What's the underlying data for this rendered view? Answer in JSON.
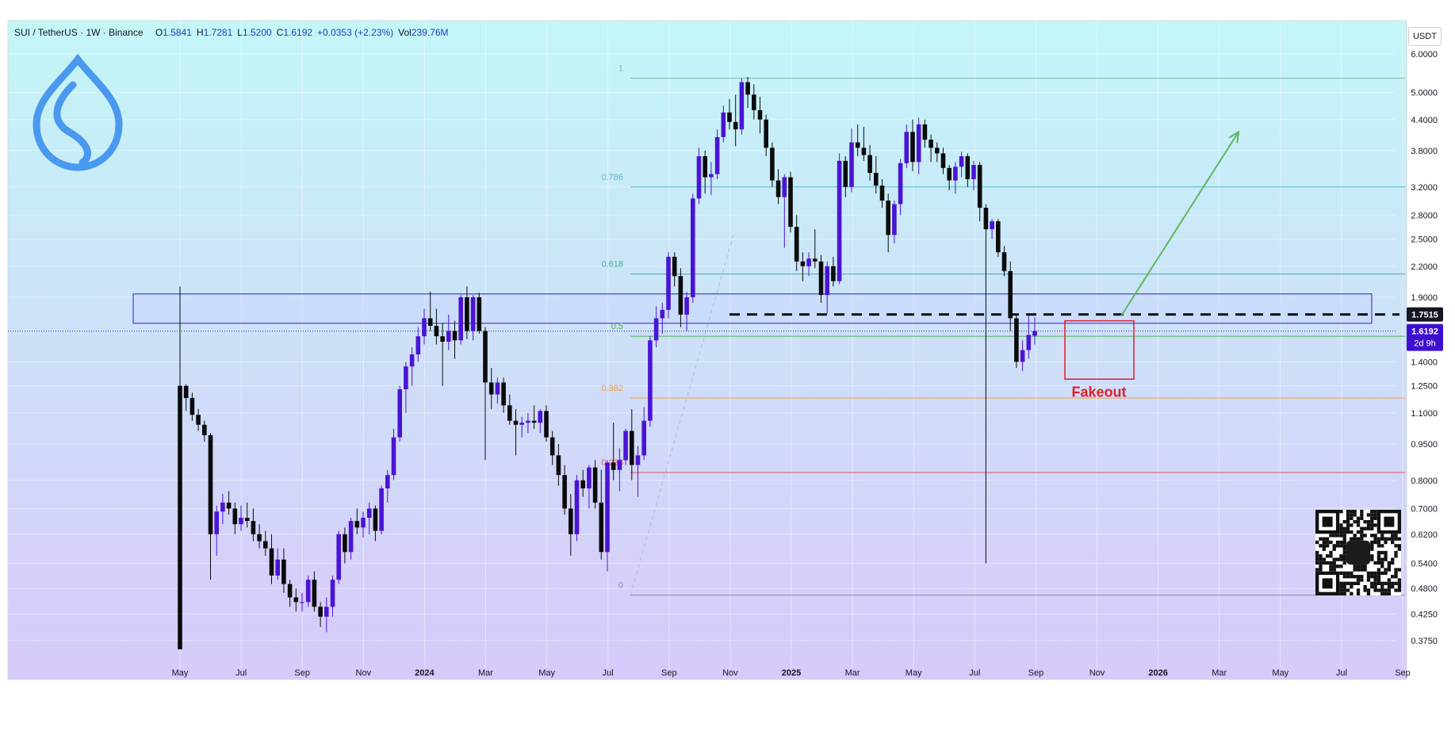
{
  "header": {
    "symbol": "SUI / TetherUS · 1W · Binance",
    "open_label": "O",
    "open": "1.5841",
    "high_label": "H",
    "high": "1.7281",
    "low_label": "L",
    "low": "1.5200",
    "close_label": "C",
    "close": "1.6192",
    "change": "+0.0353 (+2.23%)",
    "volume_label": "Vol",
    "volume": "239.76M"
  },
  "currency": "USDT",
  "colors": {
    "bg_top": "#c3f6f7",
    "bg_bottom": "#d8c9fa",
    "bull_body": "#4a14d4",
    "bear_body": "#0b0b0b",
    "accent": "#2f1fd0",
    "fakeout": "#e01e2a",
    "arrow": "#5cb85c"
  },
  "chart_data": {
    "type": "candlestick",
    "scale": "log",
    "ylim": [
      0.34,
      6.3
    ],
    "x_tick_labels": [
      "May",
      "Jul",
      "Sep",
      "Nov",
      "2024",
      "Mar",
      "May",
      "Jul",
      "Sep",
      "Nov",
      "2025",
      "Mar",
      "May",
      "Jul",
      "Sep",
      "Nov",
      "2026",
      "Mar",
      "May",
      "Jul",
      "Sep"
    ],
    "bold_x_ticks": [
      "2024",
      "2025",
      "2026"
    ],
    "y_tick_labels": [
      "6.0000",
      "5.0000",
      "4.4000",
      "3.8000",
      "3.2000",
      "2.8000",
      "2.5000",
      "2.2000",
      "1.9000",
      "1.4000",
      "1.2500",
      "1.1000",
      "0.9500",
      "0.8000",
      "0.7000",
      "0.6200",
      "0.5400",
      "0.4800",
      "0.4250",
      "0.3750"
    ],
    "y_tick_values": [
      6.0,
      5.0,
      4.4,
      3.8,
      3.2,
      2.8,
      2.5,
      2.2,
      1.9,
      1.4,
      1.25,
      1.1,
      0.95,
      0.8,
      0.7,
      0.62,
      0.54,
      0.48,
      0.425,
      0.375
    ],
    "current_price": {
      "label": "1.6192",
      "countdown": "2d 9h",
      "value": 1.6192
    },
    "level_marker": {
      "label": "1.7515",
      "value": 1.7515
    },
    "fib_levels": [
      {
        "label": "1",
        "value": 5.35,
        "color": "#7fb8a4"
      },
      {
        "label": "0.786",
        "value": 3.2,
        "color": "#58b8c4"
      },
      {
        "label": "0.618",
        "value": 2.12,
        "color": "#3fb0a0"
      },
      {
        "label": "0.5",
        "value": 1.58,
        "color": "#4caf50"
      },
      {
        "label": "0.382",
        "value": 1.18,
        "color": "#f2a13a"
      },
      {
        "label": "0.236",
        "value": 0.83,
        "color": "#e05660"
      },
      {
        "label": "0",
        "value": 0.465,
        "color": "#8a8aa0"
      }
    ],
    "zone": {
      "top": 1.93,
      "bottom": 1.68
    },
    "annotation": "Fakeout",
    "candles": [
      {
        "o": 1.25,
        "h": 1.25,
        "l": 0.36,
        "c": 0.36,
        "wick_top": 2.0
      },
      {
        "o": 1.25,
        "h": 1.26,
        "l": 1.11,
        "c": 1.18
      },
      {
        "o": 1.18,
        "h": 1.21,
        "l": 1.06,
        "c": 1.09
      },
      {
        "o": 1.09,
        "h": 1.12,
        "l": 1.01,
        "c": 1.04
      },
      {
        "o": 1.04,
        "h": 1.06,
        "l": 0.96,
        "c": 0.99
      },
      {
        "o": 0.99,
        "h": 1.0,
        "l": 0.5,
        "c": 0.62
      },
      {
        "o": 0.62,
        "h": 0.71,
        "l": 0.56,
        "c": 0.69
      },
      {
        "o": 0.69,
        "h": 0.75,
        "l": 0.65,
        "c": 0.72
      },
      {
        "o": 0.72,
        "h": 0.76,
        "l": 0.68,
        "c": 0.7
      },
      {
        "o": 0.7,
        "h": 0.72,
        "l": 0.62,
        "c": 0.65
      },
      {
        "o": 0.65,
        "h": 0.71,
        "l": 0.63,
        "c": 0.67
      },
      {
        "o": 0.67,
        "h": 0.72,
        "l": 0.64,
        "c": 0.66
      },
      {
        "o": 0.66,
        "h": 0.7,
        "l": 0.6,
        "c": 0.62
      },
      {
        "o": 0.62,
        "h": 0.65,
        "l": 0.58,
        "c": 0.6
      },
      {
        "o": 0.6,
        "h": 0.63,
        "l": 0.56,
        "c": 0.58
      },
      {
        "o": 0.58,
        "h": 0.62,
        "l": 0.49,
        "c": 0.51
      },
      {
        "o": 0.51,
        "h": 0.58,
        "l": 0.5,
        "c": 0.55
      },
      {
        "o": 0.55,
        "h": 0.58,
        "l": 0.47,
        "c": 0.49
      },
      {
        "o": 0.49,
        "h": 0.5,
        "l": 0.44,
        "c": 0.46
      },
      {
        "o": 0.46,
        "h": 0.48,
        "l": 0.43,
        "c": 0.45
      },
      {
        "o": 0.45,
        "h": 0.47,
        "l": 0.43,
        "c": 0.45
      },
      {
        "o": 0.45,
        "h": 0.51,
        "l": 0.44,
        "c": 0.5
      },
      {
        "o": 0.5,
        "h": 0.52,
        "l": 0.43,
        "c": 0.44
      },
      {
        "o": 0.44,
        "h": 0.45,
        "l": 0.4,
        "c": 0.42
      },
      {
        "o": 0.42,
        "h": 0.46,
        "l": 0.39,
        "c": 0.44
      },
      {
        "o": 0.44,
        "h": 0.51,
        "l": 0.42,
        "c": 0.5
      },
      {
        "o": 0.5,
        "h": 0.63,
        "l": 0.49,
        "c": 0.62
      },
      {
        "o": 0.62,
        "h": 0.64,
        "l": 0.54,
        "c": 0.57
      },
      {
        "o": 0.57,
        "h": 0.67,
        "l": 0.55,
        "c": 0.66
      },
      {
        "o": 0.66,
        "h": 0.7,
        "l": 0.62,
        "c": 0.64
      },
      {
        "o": 0.64,
        "h": 0.69,
        "l": 0.61,
        "c": 0.67
      },
      {
        "o": 0.67,
        "h": 0.72,
        "l": 0.62,
        "c": 0.7
      },
      {
        "o": 0.7,
        "h": 0.71,
        "l": 0.6,
        "c": 0.63
      },
      {
        "o": 0.63,
        "h": 0.78,
        "l": 0.62,
        "c": 0.77
      },
      {
        "o": 0.77,
        "h": 0.84,
        "l": 0.72,
        "c": 0.82
      },
      {
        "o": 0.82,
        "h": 1.02,
        "l": 0.8,
        "c": 0.98
      },
      {
        "o": 0.98,
        "h": 1.25,
        "l": 0.96,
        "c": 1.23
      },
      {
        "o": 1.23,
        "h": 1.4,
        "l": 1.1,
        "c": 1.37
      },
      {
        "o": 1.37,
        "h": 1.5,
        "l": 1.25,
        "c": 1.45
      },
      {
        "o": 1.45,
        "h": 1.65,
        "l": 1.4,
        "c": 1.58
      },
      {
        "o": 1.58,
        "h": 1.8,
        "l": 1.52,
        "c": 1.72
      },
      {
        "o": 1.72,
        "h": 1.95,
        "l": 1.62,
        "c": 1.66
      },
      {
        "o": 1.66,
        "h": 1.8,
        "l": 1.52,
        "c": 1.58
      },
      {
        "o": 1.58,
        "h": 1.68,
        "l": 1.25,
        "c": 1.54
      },
      {
        "o": 1.54,
        "h": 1.75,
        "l": 1.48,
        "c": 1.62
      },
      {
        "o": 1.62,
        "h": 1.7,
        "l": 1.42,
        "c": 1.55
      },
      {
        "o": 1.55,
        "h": 1.92,
        "l": 1.52,
        "c": 1.9
      },
      {
        "o": 1.9,
        "h": 2.0,
        "l": 1.56,
        "c": 1.62
      },
      {
        "o": 1.62,
        "h": 1.92,
        "l": 1.55,
        "c": 1.9
      },
      {
        "o": 1.9,
        "h": 1.94,
        "l": 1.6,
        "c": 1.62
      },
      {
        "o": 1.62,
        "h": 1.65,
        "l": 0.88,
        "c": 1.27
      },
      {
        "o": 1.27,
        "h": 1.36,
        "l": 1.12,
        "c": 1.2
      },
      {
        "o": 1.2,
        "h": 1.3,
        "l": 1.15,
        "c": 1.27
      },
      {
        "o": 1.27,
        "h": 1.3,
        "l": 1.1,
        "c": 1.14
      },
      {
        "o": 1.14,
        "h": 1.2,
        "l": 1.04,
        "c": 1.06
      },
      {
        "o": 1.06,
        "h": 1.12,
        "l": 0.9,
        "c": 1.04
      },
      {
        "o": 1.04,
        "h": 1.08,
        "l": 0.98,
        "c": 1.05
      },
      {
        "o": 1.05,
        "h": 1.1,
        "l": 1.0,
        "c": 1.06
      },
      {
        "o": 1.06,
        "h": 1.14,
        "l": 1.02,
        "c": 1.05
      },
      {
        "o": 1.05,
        "h": 1.12,
        "l": 1.0,
        "c": 1.11
      },
      {
        "o": 1.11,
        "h": 1.14,
        "l": 0.96,
        "c": 0.98
      },
      {
        "o": 0.98,
        "h": 1.01,
        "l": 0.86,
        "c": 0.9
      },
      {
        "o": 0.9,
        "h": 0.95,
        "l": 0.78,
        "c": 0.82
      },
      {
        "o": 0.82,
        "h": 0.86,
        "l": 0.68,
        "c": 0.7
      },
      {
        "o": 0.7,
        "h": 0.75,
        "l": 0.56,
        "c": 0.62
      },
      {
        "o": 0.62,
        "h": 0.82,
        "l": 0.6,
        "c": 0.8
      },
      {
        "o": 0.8,
        "h": 0.84,
        "l": 0.74,
        "c": 0.77
      },
      {
        "o": 0.77,
        "h": 0.86,
        "l": 0.7,
        "c": 0.85
      },
      {
        "o": 0.85,
        "h": 0.88,
        "l": 0.7,
        "c": 0.72
      },
      {
        "o": 0.72,
        "h": 0.84,
        "l": 0.55,
        "c": 0.57
      },
      {
        "o": 0.57,
        "h": 0.88,
        "l": 0.52,
        "c": 0.87
      },
      {
        "o": 0.87,
        "h": 1.05,
        "l": 0.8,
        "c": 0.84
      },
      {
        "o": 0.84,
        "h": 0.93,
        "l": 0.76,
        "c": 0.88
      },
      {
        "o": 0.88,
        "h": 1.02,
        "l": 0.86,
        "c": 1.01
      },
      {
        "o": 1.01,
        "h": 1.12,
        "l": 0.8,
        "c": 0.86
      },
      {
        "o": 0.86,
        "h": 0.94,
        "l": 0.74,
        "c": 0.9
      },
      {
        "o": 0.9,
        "h": 1.13,
        "l": 0.88,
        "c": 1.06
      },
      {
        "o": 1.06,
        "h": 1.58,
        "l": 1.03,
        "c": 1.55
      },
      {
        "o": 1.55,
        "h": 1.82,
        "l": 1.5,
        "c": 1.72
      },
      {
        "o": 1.72,
        "h": 1.85,
        "l": 1.6,
        "c": 1.79
      },
      {
        "o": 1.79,
        "h": 2.35,
        "l": 1.72,
        "c": 2.3
      },
      {
        "o": 2.3,
        "h": 2.35,
        "l": 2.0,
        "c": 2.1
      },
      {
        "o": 2.1,
        "h": 2.18,
        "l": 1.65,
        "c": 1.75
      },
      {
        "o": 1.75,
        "h": 1.95,
        "l": 1.62,
        "c": 1.9
      },
      {
        "o": 1.9,
        "h": 3.1,
        "l": 1.85,
        "c": 3.03
      },
      {
        "o": 3.03,
        "h": 3.85,
        "l": 2.95,
        "c": 3.7
      },
      {
        "o": 3.7,
        "h": 3.8,
        "l": 3.1,
        "c": 3.35
      },
      {
        "o": 3.35,
        "h": 3.6,
        "l": 3.08,
        "c": 3.4
      },
      {
        "o": 3.4,
        "h": 4.2,
        "l": 3.32,
        "c": 4.05
      },
      {
        "o": 4.05,
        "h": 4.7,
        "l": 3.95,
        "c": 4.55
      },
      {
        "o": 4.55,
        "h": 4.85,
        "l": 4.2,
        "c": 4.35
      },
      {
        "o": 4.35,
        "h": 4.95,
        "l": 3.88,
        "c": 4.2
      },
      {
        "o": 4.2,
        "h": 5.35,
        "l": 4.1,
        "c": 5.25
      },
      {
        "o": 5.25,
        "h": 5.38,
        "l": 4.65,
        "c": 4.95
      },
      {
        "o": 4.95,
        "h": 5.2,
        "l": 4.4,
        "c": 4.6
      },
      {
        "o": 4.6,
        "h": 4.9,
        "l": 4.12,
        "c": 4.4
      },
      {
        "o": 4.4,
        "h": 4.5,
        "l": 3.7,
        "c": 3.85
      },
      {
        "o": 3.85,
        "h": 3.95,
        "l": 3.2,
        "c": 3.3
      },
      {
        "o": 3.3,
        "h": 3.48,
        "l": 2.95,
        "c": 3.05
      },
      {
        "o": 3.05,
        "h": 3.4,
        "l": 2.4,
        "c": 3.35
      },
      {
        "o": 3.35,
        "h": 3.44,
        "l": 2.58,
        "c": 2.65
      },
      {
        "o": 2.65,
        "h": 2.8,
        "l": 2.15,
        "c": 2.25
      },
      {
        "o": 2.25,
        "h": 2.35,
        "l": 2.05,
        "c": 2.2
      },
      {
        "o": 2.2,
        "h": 2.35,
        "l": 2.1,
        "c": 2.28
      },
      {
        "o": 2.28,
        "h": 2.62,
        "l": 2.18,
        "c": 2.25
      },
      {
        "o": 2.25,
        "h": 2.32,
        "l": 1.85,
        "c": 1.92
      },
      {
        "o": 1.92,
        "h": 2.25,
        "l": 1.76,
        "c": 2.2
      },
      {
        "o": 2.2,
        "h": 2.3,
        "l": 2.0,
        "c": 2.05
      },
      {
        "o": 2.05,
        "h": 3.75,
        "l": 2.02,
        "c": 3.62
      },
      {
        "o": 3.62,
        "h": 3.7,
        "l": 3.05,
        "c": 3.2
      },
      {
        "o": 3.2,
        "h": 4.22,
        "l": 3.12,
        "c": 3.95
      },
      {
        "o": 3.95,
        "h": 4.3,
        "l": 3.7,
        "c": 3.85
      },
      {
        "o": 3.85,
        "h": 4.25,
        "l": 3.62,
        "c": 3.72
      },
      {
        "o": 3.72,
        "h": 3.9,
        "l": 3.3,
        "c": 3.42
      },
      {
        "o": 3.42,
        "h": 3.7,
        "l": 3.1,
        "c": 3.22
      },
      {
        "o": 3.22,
        "h": 3.32,
        "l": 2.9,
        "c": 3.0
      },
      {
        "o": 3.0,
        "h": 3.1,
        "l": 2.35,
        "c": 2.55
      },
      {
        "o": 2.55,
        "h": 3.0,
        "l": 2.45,
        "c": 2.95
      },
      {
        "o": 2.95,
        "h": 3.65,
        "l": 2.8,
        "c": 3.58
      },
      {
        "o": 3.58,
        "h": 4.3,
        "l": 3.5,
        "c": 4.15
      },
      {
        "o": 4.15,
        "h": 4.4,
        "l": 3.45,
        "c": 3.6
      },
      {
        "o": 3.6,
        "h": 4.44,
        "l": 3.4,
        "c": 4.3
      },
      {
        "o": 4.3,
        "h": 4.4,
        "l": 3.85,
        "c": 4.0
      },
      {
        "o": 4.0,
        "h": 4.1,
        "l": 3.6,
        "c": 3.85
      },
      {
        "o": 3.85,
        "h": 3.95,
        "l": 3.6,
        "c": 3.75
      },
      {
        "o": 3.75,
        "h": 3.85,
        "l": 3.4,
        "c": 3.5
      },
      {
        "o": 3.5,
        "h": 3.55,
        "l": 3.15,
        "c": 3.3
      },
      {
        "o": 3.3,
        "h": 3.6,
        "l": 3.1,
        "c": 3.52
      },
      {
        "o": 3.52,
        "h": 3.78,
        "l": 3.35,
        "c": 3.7
      },
      {
        "o": 3.7,
        "h": 3.75,
        "l": 3.2,
        "c": 3.32
      },
      {
        "o": 3.32,
        "h": 3.62,
        "l": 3.15,
        "c": 3.55
      },
      {
        "o": 3.55,
        "h": 3.6,
        "l": 2.72,
        "c": 2.9
      },
      {
        "o": 2.9,
        "h": 2.95,
        "l": 0.54,
        "c": 2.62
      },
      {
        "o": 2.62,
        "h": 2.75,
        "l": 2.5,
        "c": 2.72
      },
      {
        "o": 2.72,
        "h": 2.75,
        "l": 2.3,
        "c": 2.35
      },
      {
        "o": 2.35,
        "h": 2.42,
        "l": 2.1,
        "c": 2.15
      },
      {
        "o": 2.15,
        "h": 2.25,
        "l": 1.62,
        "c": 1.72
      },
      {
        "o": 1.72,
        "h": 1.75,
        "l": 1.36,
        "c": 1.4
      },
      {
        "o": 1.4,
        "h": 1.55,
        "l": 1.34,
        "c": 1.48
      },
      {
        "o": 1.48,
        "h": 1.75,
        "l": 1.42,
        "c": 1.59
      },
      {
        "o": 1.5841,
        "h": 1.7281,
        "l": 1.52,
        "c": 1.6192
      }
    ]
  }
}
